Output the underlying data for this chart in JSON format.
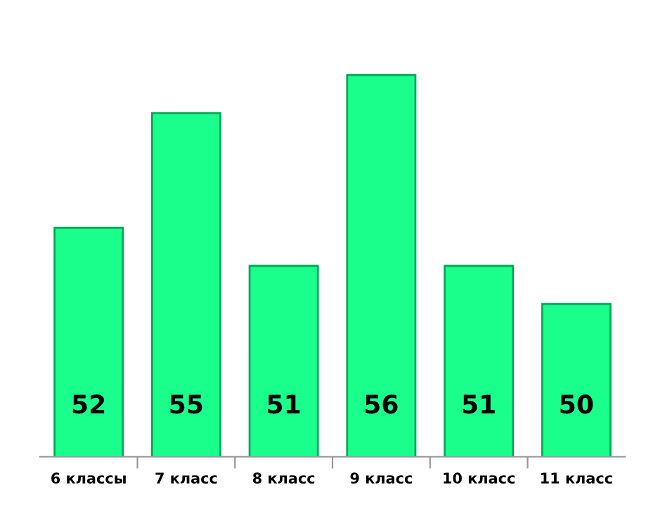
{
  "chart_data": {
    "type": "bar",
    "categories": [
      "6 классы",
      "7 класс",
      "8 класс",
      "9 класс",
      "10 класс",
      "11 класс"
    ],
    "values": [
      52,
      55,
      51,
      56,
      51,
      50
    ],
    "color": "#1aff8c",
    "tick_labels": "x",
    "data_labels": true
  }
}
